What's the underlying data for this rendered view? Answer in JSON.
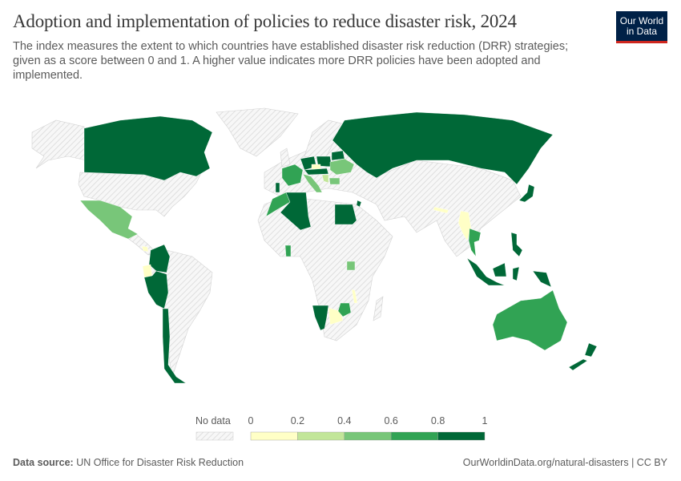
{
  "header": {
    "title": "Adoption and implementation of policies to reduce disaster risk, 2024",
    "subtitle": "The index measures the extent to which countries have established disaster risk reduction (DRR) strategies; given as a score between 0 and 1. A higher value indicates more DRR policies have been adopted and implemented.",
    "logo_line1": "Our World",
    "logo_line2": "in Data"
  },
  "legend": {
    "no_data_label": "No data",
    "ticks": [
      "0",
      "0.2",
      "0.4",
      "0.6",
      "0.8",
      "1"
    ],
    "bins": [
      {
        "range": [
          0,
          0.2
        ],
        "color": "#ffffc6"
      },
      {
        "range": [
          0.2,
          0.4
        ],
        "color": "#c2e699"
      },
      {
        "range": [
          0.4,
          0.6
        ],
        "color": "#78c679"
      },
      {
        "range": [
          0.6,
          0.8
        ],
        "color": "#31a354"
      },
      {
        "range": [
          0.8,
          1
        ],
        "color": "#006837"
      }
    ]
  },
  "map_data": {
    "Canada": 1,
    "Mexico": 0.5,
    "Costa Rica": 0.1,
    "Colombia": 1,
    "Ecuador": 0.1,
    "Peru": 1,
    "Chile": 1,
    "Portugal": 1,
    "France": 0.7,
    "Germany": 0.9,
    "Poland": 0.9,
    "Czechia": 0.1,
    "Austria": 0.9,
    "Hungary": 0.9,
    "Italy": 0.5,
    "Serbia": 0.3,
    "Bulgaria": 0.5,
    "Ukraine": 0.5,
    "Belarus": 0.9,
    "Lithuania": 0.5,
    "Russia": 1,
    "Morocco": 0.7,
    "Algeria": 1,
    "Egypt": 1,
    "Jordan": 0.9,
    "Ghana": 0.7,
    "Uganda": 0.5,
    "Rwanda": 0.7,
    "Malawi": 0.1,
    "Namibia": 1,
    "Botswana": 0.1,
    "Zimbabwe": 0.7,
    "Eswatini": 0.9,
    "Nepal": 0.1,
    "Myanmar": 0.1,
    "Thailand": 0.7,
    "Japan": 1,
    "Philippines": 1,
    "Indonesia": 1,
    "Papua New Guinea": 1,
    "Australia": 0.7,
    "New Zealand": 1
  },
  "footer": {
    "source_label": "Data source:",
    "source": "UN Office for Disaster Risk Reduction",
    "url": "OurWorldinData.org/natural-disasters | CC BY"
  }
}
